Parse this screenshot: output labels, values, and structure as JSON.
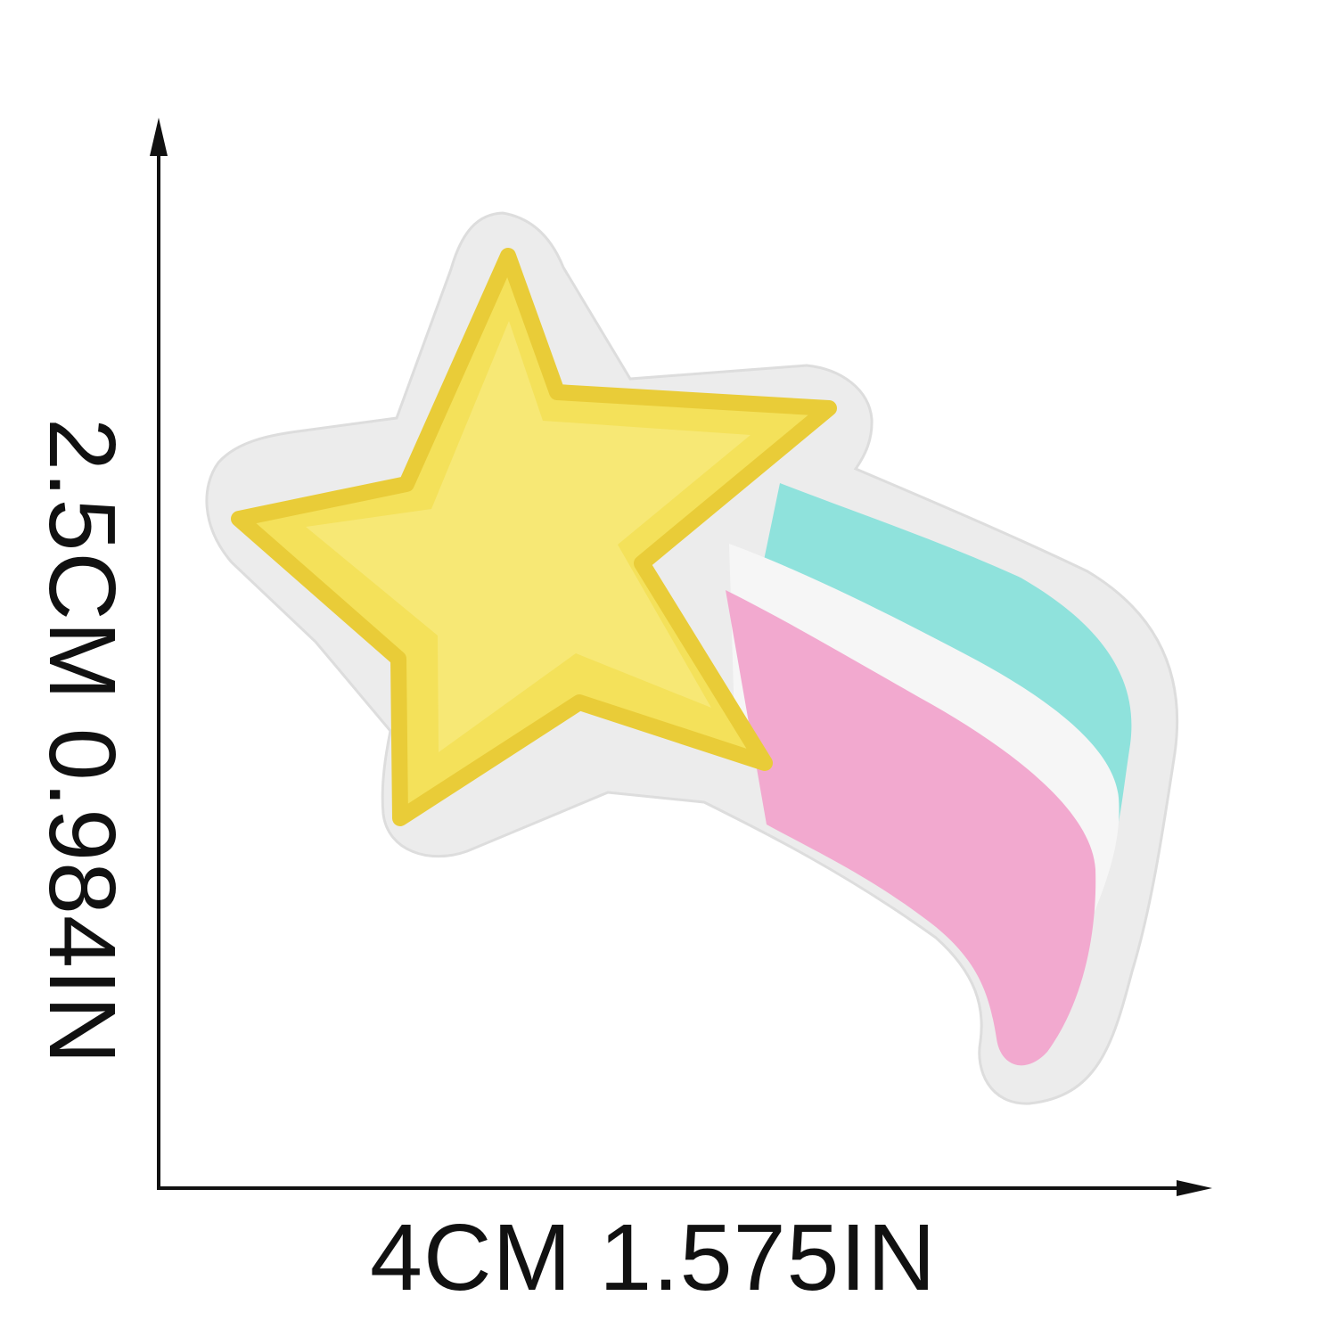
{
  "dimensions": {
    "width_label": "4CM  1.575IN",
    "height_label": "2.5CM  0.984IN"
  },
  "patch": {
    "subject": "shooting star embroidered patch",
    "colors": {
      "felt_border": "#ececec",
      "star_yellow": "#f4e15a",
      "star_yellow_light": "#f8ea7f",
      "stripe_teal": "#8fe2dc",
      "stripe_white": "#f6f6f6",
      "stripe_pink": "#f2a9cf"
    }
  },
  "arrows": {
    "color": "#111111"
  }
}
